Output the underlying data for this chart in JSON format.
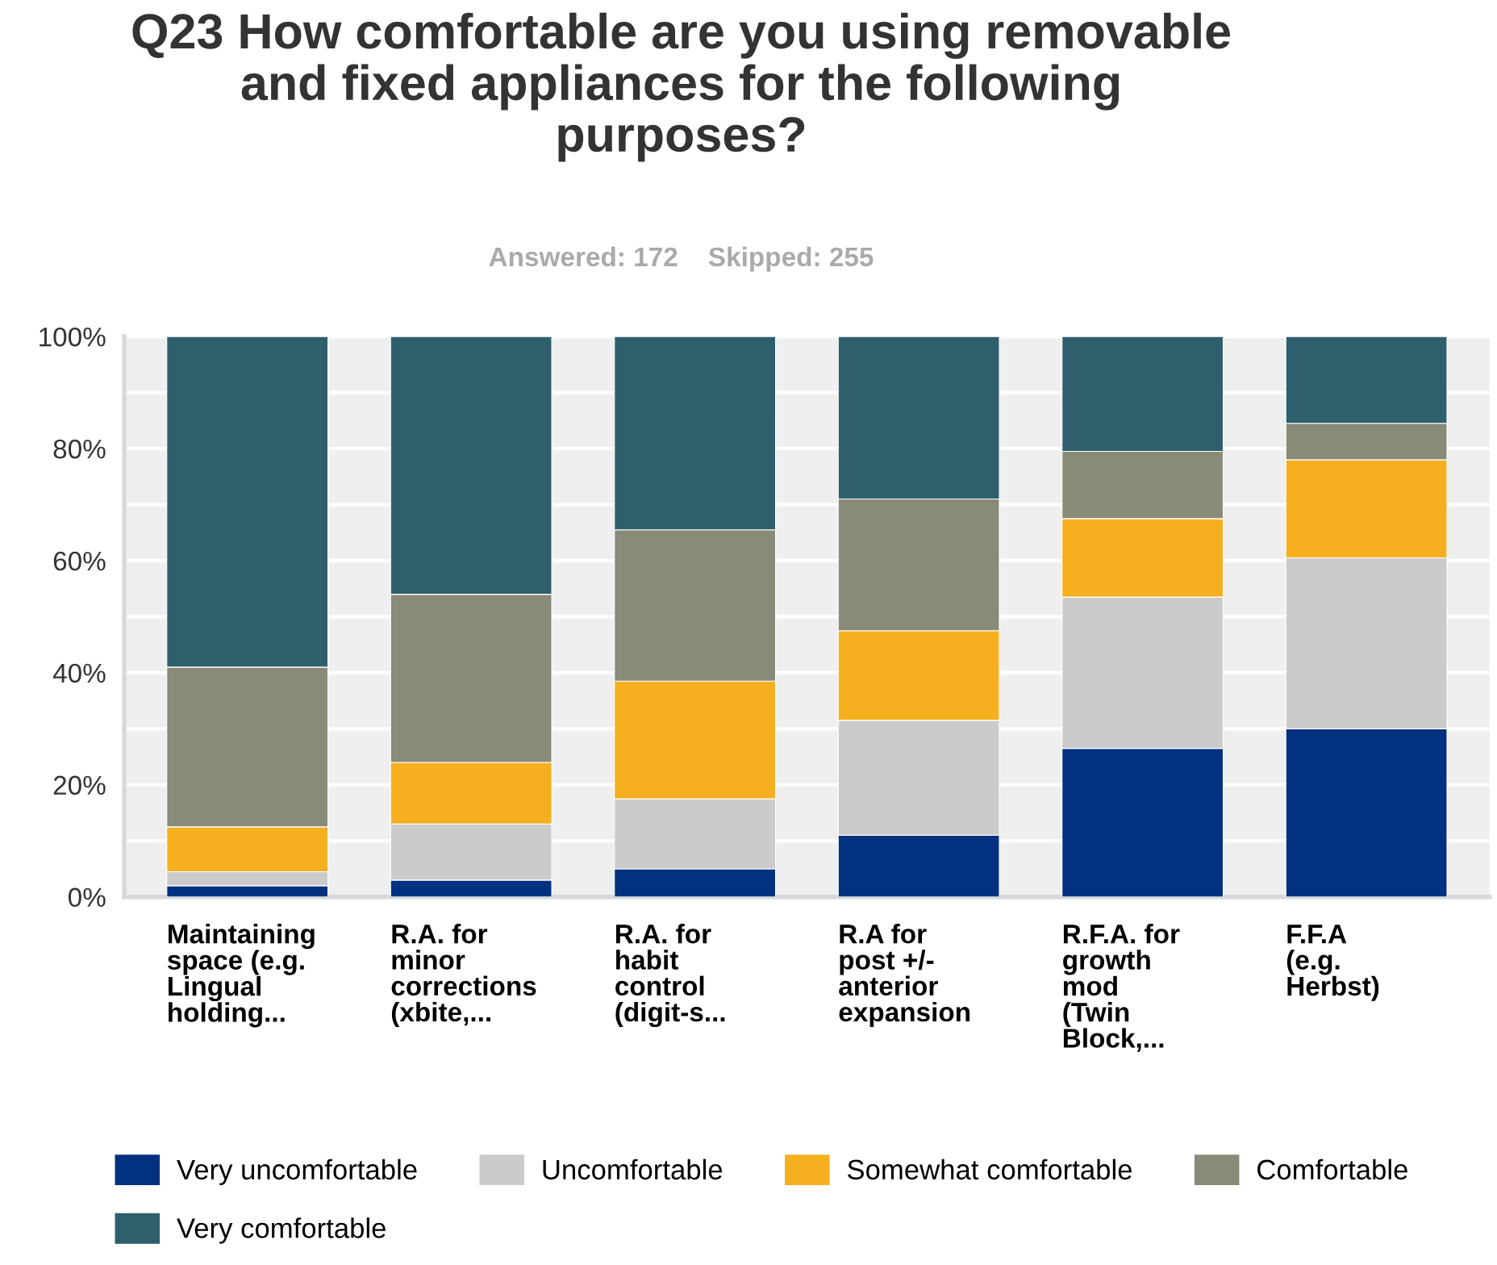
{
  "chart_data": {
    "type": "bar",
    "stacked": true,
    "title": "Q23 How comfortable are you using removable and fixed appliances for the following purposes?",
    "subtitle": "Answered: 172    Skipped: 255",
    "categories": [
      "Maintaining\nspace (e.g.\nLingual\nholding...",
      "R.A. for\nminor\ncorrections\n(xbite,...",
      "R.A. for\nhabit\ncontrol\n(digit-s...",
      "R.A for\npost +/-\nanterior\nexpansion",
      "R.F.A. for\ngrowth\nmod\n(Twin\nBlock,...",
      "F.F.A\n(e.g.\nHerbst)"
    ],
    "series": [
      {
        "name": "Very uncomfortable",
        "color": "#023180",
        "values": [
          2,
          3,
          5,
          11,
          26.5,
          30
        ]
      },
      {
        "name": "Uncomfortable",
        "color": "#cbcbcb",
        "values": [
          2.5,
          10,
          12.5,
          20.5,
          27,
          30.5
        ]
      },
      {
        "name": "Somewhat comfortable",
        "color": "#f5af1f",
        "values": [
          8,
          11,
          21,
          16,
          14,
          17.5
        ]
      },
      {
        "name": "Comfortable",
        "color": "#898a78",
        "values": [
          28.5,
          30,
          27,
          23.5,
          12,
          6.5
        ]
      },
      {
        "name": "Very comfortable",
        "color": "#2f5f6c",
        "values": [
          59,
          46,
          34.5,
          29,
          20.5,
          15.5
        ]
      }
    ],
    "ylim": [
      0,
      100
    ],
    "yticks": [
      {
        "value": 0,
        "label": "0%"
      },
      {
        "value": 10,
        "label": null
      },
      {
        "value": 20,
        "label": "20%"
      },
      {
        "value": 30,
        "label": null
      },
      {
        "value": 40,
        "label": "40%"
      },
      {
        "value": 50,
        "label": null
      },
      {
        "value": 60,
        "label": "60%"
      },
      {
        "value": 70,
        "label": null
      },
      {
        "value": 80,
        "label": "80%"
      },
      {
        "value": 90,
        "label": null
      },
      {
        "value": 100,
        "label": "100%"
      }
    ],
    "grid": "y",
    "legend": "bottom"
  }
}
